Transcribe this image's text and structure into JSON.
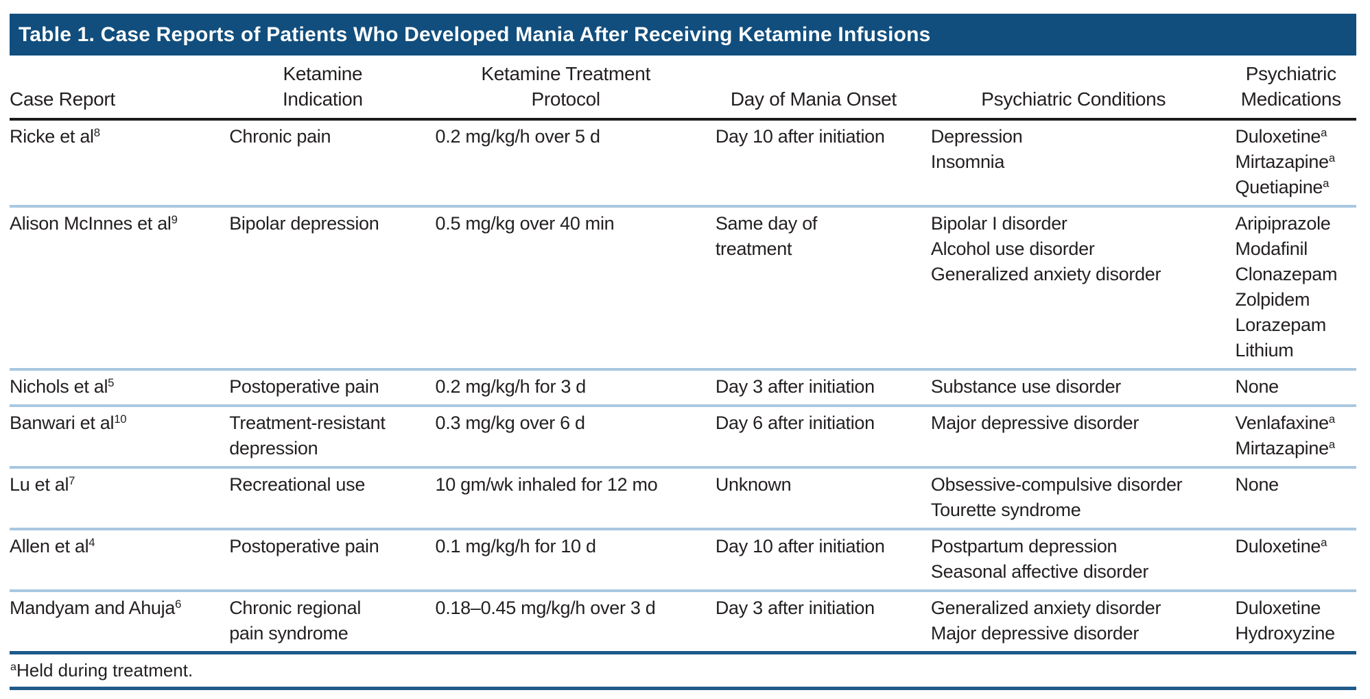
{
  "colors": {
    "title_bar_bg": "#114e7d",
    "title_text": "#ffffff",
    "text": "#231f20",
    "header_rule": "#1c1c1c",
    "row_separator": "#a9c7e0",
    "footnote_rule": "#1d5a8a"
  },
  "table": {
    "title": "Table 1. Case Reports of Patients Who Developed Mania After Receiving Ketamine Infusions",
    "columns": [
      {
        "key": "case-report",
        "align": "left",
        "lines": [
          "Case Report"
        ]
      },
      {
        "key": "ketamine-indication",
        "align": "center",
        "lines": [
          "Ketamine",
          "Indication"
        ]
      },
      {
        "key": "ketamine-treatment-protocol",
        "align": "center",
        "lines": [
          "Ketamine Treatment",
          "Protocol"
        ]
      },
      {
        "key": "day-of-mania-onset",
        "align": "center",
        "lines": [
          "Day of Mania Onset"
        ]
      },
      {
        "key": "psychiatric-conditions",
        "align": "center",
        "lines": [
          "Psychiatric Conditions"
        ]
      },
      {
        "key": "psychiatric-medications",
        "align": "center",
        "lines": [
          "Psychiatric",
          "Medications"
        ]
      }
    ],
    "rows": [
      {
        "cells": {
          "case_report": [
            {
              "t": "Ricke et al",
              "sup": "8"
            }
          ],
          "indication": [
            {
              "t": "Chronic pain"
            }
          ],
          "protocol": [
            {
              "t": "0.2 mg/kg/h over 5 d"
            }
          ],
          "onset": [
            {
              "t": "Day 10 after initiation"
            }
          ],
          "conditions": [
            {
              "t": "Depression"
            },
            {
              "t": "Insomnia"
            }
          ],
          "medications": [
            {
              "t": "Duloxetine",
              "sup": "a"
            },
            {
              "t": "Mirtazapine",
              "sup": "a"
            },
            {
              "t": "Quetiapine",
              "sup": "a"
            }
          ]
        }
      },
      {
        "cells": {
          "case_report": [
            {
              "t": "Alison McInnes et al",
              "sup": "9"
            }
          ],
          "indication": [
            {
              "t": "Bipolar depression"
            }
          ],
          "protocol": [
            {
              "t": "0.5 mg/kg over 40 min"
            }
          ],
          "onset": [
            {
              "t": "Same day of"
            },
            {
              "t": "treatment"
            }
          ],
          "conditions": [
            {
              "t": "Bipolar I disorder"
            },
            {
              "t": "Alcohol use disorder"
            },
            {
              "t": "Generalized anxiety disorder"
            }
          ],
          "medications": [
            {
              "t": "Aripiprazole"
            },
            {
              "t": "Modafinil"
            },
            {
              "t": "Clonazepam"
            },
            {
              "t": "Zolpidem"
            },
            {
              "t": "Lorazepam"
            },
            {
              "t": "Lithium"
            }
          ]
        }
      },
      {
        "cells": {
          "case_report": [
            {
              "t": "Nichols et al",
              "sup": "5"
            }
          ],
          "indication": [
            {
              "t": "Postoperative pain"
            }
          ],
          "protocol": [
            {
              "t": "0.2 mg/kg/h for 3 d"
            }
          ],
          "onset": [
            {
              "t": "Day 3 after initiation"
            }
          ],
          "conditions": [
            {
              "t": "Substance use disorder"
            }
          ],
          "medications": [
            {
              "t": "None"
            }
          ]
        }
      },
      {
        "cells": {
          "case_report": [
            {
              "t": "Banwari et al",
              "sup": "10"
            }
          ],
          "indication": [
            {
              "t": "Treatment-resistant"
            },
            {
              "t": "depression"
            }
          ],
          "protocol": [
            {
              "t": "0.3 mg/kg over 6 d"
            }
          ],
          "onset": [
            {
              "t": "Day 6 after initiation"
            }
          ],
          "conditions": [
            {
              "t": "Major depressive disorder"
            }
          ],
          "medications": [
            {
              "t": "Venlafaxine",
              "sup": "a"
            },
            {
              "t": "Mirtazapine",
              "sup": "a"
            }
          ]
        }
      },
      {
        "cells": {
          "case_report": [
            {
              "t": "Lu et al",
              "sup": "7"
            }
          ],
          "indication": [
            {
              "t": "Recreational use"
            }
          ],
          "protocol": [
            {
              "t": "10 gm/wk inhaled for 12 mo"
            }
          ],
          "onset": [
            {
              "t": "Unknown"
            }
          ],
          "conditions": [
            {
              "t": "Obsessive-compulsive disorder"
            },
            {
              "t": "Tourette syndrome"
            }
          ],
          "medications": [
            {
              "t": "None"
            }
          ]
        }
      },
      {
        "cells": {
          "case_report": [
            {
              "t": "Allen et al",
              "sup": "4"
            }
          ],
          "indication": [
            {
              "t": "Postoperative pain"
            }
          ],
          "protocol": [
            {
              "t": "0.1 mg/kg/h for 10 d"
            }
          ],
          "onset": [
            {
              "t": "Day 10 after initiation"
            }
          ],
          "conditions": [
            {
              "t": "Postpartum depression"
            },
            {
              "t": "Seasonal affective disorder"
            }
          ],
          "medications": [
            {
              "t": "Duloxetine",
              "sup": "a"
            }
          ]
        }
      },
      {
        "cells": {
          "case_report": [
            {
              "t": "Mandyam and Ahuja",
              "sup": "6"
            }
          ],
          "indication": [
            {
              "t": "Chronic regional"
            },
            {
              "t": "pain syndrome"
            }
          ],
          "protocol": [
            {
              "t": "0.18–0.45 mg/kg/h over 3 d"
            }
          ],
          "onset": [
            {
              "t": "Day 3 after initiation"
            }
          ],
          "conditions": [
            {
              "t": "Generalized anxiety disorder"
            },
            {
              "t": "Major depressive disorder"
            }
          ],
          "medications": [
            {
              "t": "Duloxetine"
            },
            {
              "t": "Hydroxyzine"
            }
          ]
        }
      }
    ],
    "footnote": {
      "sup": "a",
      "text": "Held during treatment."
    }
  }
}
